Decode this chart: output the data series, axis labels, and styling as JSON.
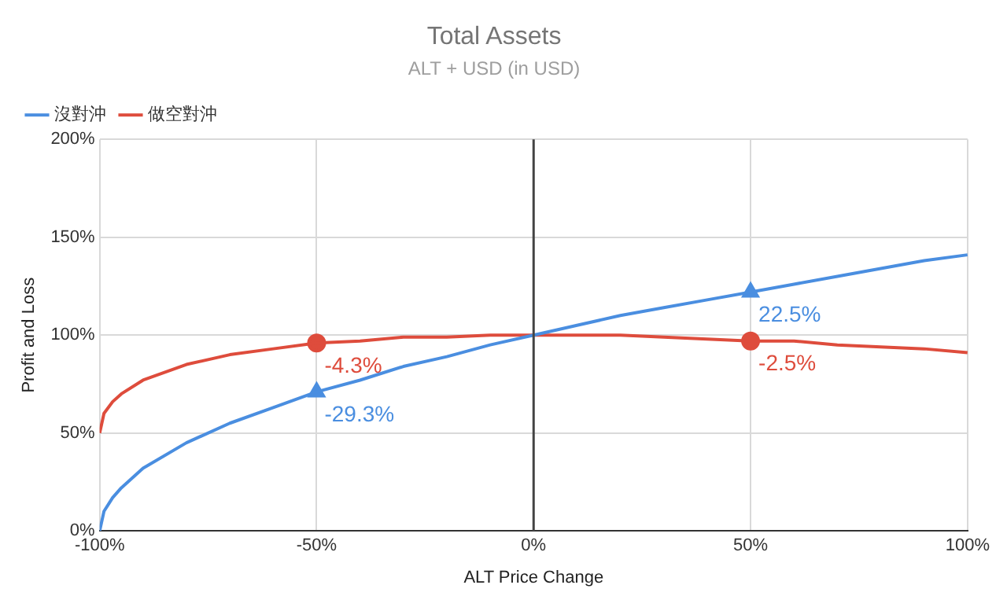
{
  "chart_data": {
    "type": "line",
    "title": "Total Assets",
    "subtitle": "ALT + USD (in USD)",
    "xlabel": "ALT Price Change",
    "ylabel": "Profit and Loss",
    "x": [
      -100,
      -99,
      -97,
      -95,
      -90,
      -80,
      -70,
      -60,
      -50,
      -40,
      -30,
      -20,
      -10,
      0,
      10,
      20,
      30,
      40,
      50,
      60,
      70,
      80,
      90,
      100
    ],
    "series": [
      {
        "name": "沒對沖",
        "color": "#4a8ee0",
        "values": [
          0,
          10,
          17,
          22,
          32,
          45,
          55,
          63,
          71,
          77,
          84,
          89,
          95,
          100,
          105,
          110,
          114,
          118,
          122,
          126,
          130,
          134,
          138,
          141
        ]
      },
      {
        "name": "做空對沖",
        "color": "#de4c3c",
        "values": [
          50,
          60,
          66,
          70,
          77,
          85,
          90,
          93,
          96,
          97,
          99,
          99,
          100,
          100,
          100,
          100,
          99,
          98,
          97,
          97,
          95,
          94,
          93,
          91
        ]
      },
      {
        "type": "scatter",
        "color": "#4a8ee0",
        "marker": "triangle",
        "values": [
          null,
          null,
          null,
          null,
          null,
          null,
          null,
          null,
          71,
          null,
          null,
          null,
          null,
          null,
          null,
          null,
          null,
          null,
          122,
          null,
          null,
          null,
          null,
          null
        ]
      },
      {
        "type": "scatter",
        "color": "#de4c3c",
        "marker": "circle",
        "values": [
          null,
          null,
          null,
          null,
          null,
          null,
          null,
          null,
          96,
          null,
          null,
          null,
          null,
          null,
          null,
          null,
          null,
          null,
          97,
          null,
          null,
          null,
          null,
          null
        ]
      }
    ],
    "annotations": [
      "-29.3%",
      "22.5%",
      "-4.3%",
      "-2.5%"
    ],
    "xlim": [
      -100,
      100
    ],
    "xticks": [
      {
        "value": -100,
        "label": "-100%"
      },
      {
        "value": -50,
        "label": "-50%"
      },
      {
        "value": 0,
        "label": "0%"
      },
      {
        "value": 50,
        "label": "50%"
      },
      {
        "value": 100,
        "label": "100%"
      }
    ],
    "ylim": [
      0,
      200
    ],
    "yticks": [
      {
        "value": 0,
        "label": "0%"
      },
      {
        "value": 50,
        "label": "50%"
      },
      {
        "value": 100,
        "label": "100%"
      },
      {
        "value": 150,
        "label": "150%"
      },
      {
        "value": 200,
        "label": "200%"
      }
    ],
    "ref_lines": [
      {
        "axis": "x",
        "value": 0,
        "color": "#444444"
      }
    ],
    "grid": true,
    "legend": "top left",
    "line_style": "solid"
  }
}
